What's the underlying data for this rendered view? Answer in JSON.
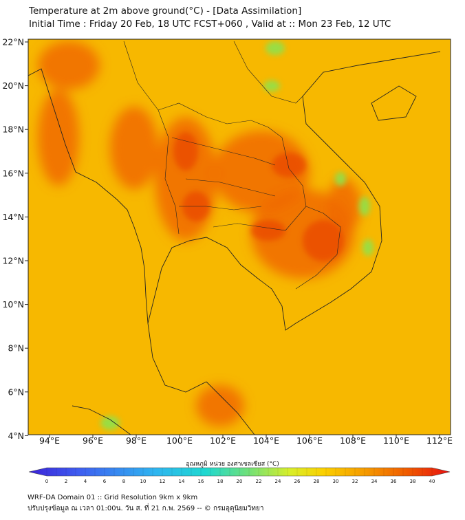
{
  "header": {
    "title_line1": "Temperature at 2m above ground(°C) - [Data Assimilation]",
    "title_line2": "Initial Time : Friday 20 Feb, 18 UTC FCST+060 , Valid at :: Mon 23 Feb, 12 UTC"
  },
  "map": {
    "lat_labels": [
      "22°N",
      "20°N",
      "18°N",
      "16°N",
      "14°N",
      "12°N",
      "10°N",
      "8°N",
      "6°N",
      "4°N"
    ],
    "lon_labels": [
      "94°E",
      "96°E",
      "98°E",
      "100°E",
      "102°E",
      "104°E",
      "106°E",
      "108°E",
      "110°E",
      "112°E"
    ],
    "base_color": "#f7b800",
    "hot_color": "#f06a00",
    "hottest_color": "#ea4a00",
    "cool_color": "#8fe14a"
  },
  "colorbar": {
    "title": "อุณหภูมิ หน่วย องศาเซลเซียส (°C)",
    "ticks": [
      "0",
      "2",
      "4",
      "6",
      "8",
      "10",
      "12",
      "14",
      "16",
      "18",
      "20",
      "22",
      "24",
      "26",
      "28",
      "30",
      "32",
      "34",
      "36",
      "38",
      "40"
    ]
  },
  "footer": {
    "line1": "WRF-DA Domain 01 :: Grid Resolution 9km x 9km",
    "line2": "ปรับปรุงข้อมูล ณ เวลา 01:00น. วัน ส. ที่ 21 ก.พ. 2569 -- © กรมอุตุนิยมวิทยา"
  }
}
